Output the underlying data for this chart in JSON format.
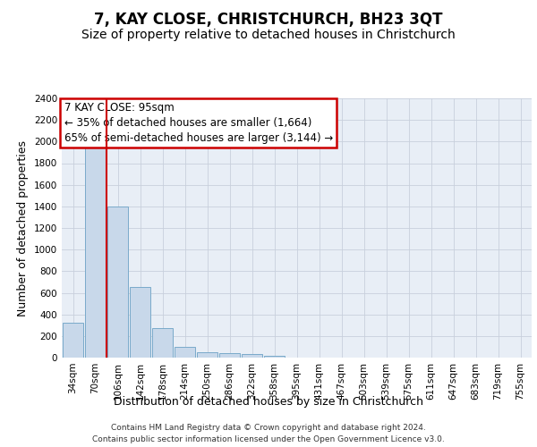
{
  "title": "7, KAY CLOSE, CHRISTCHURCH, BH23 3QT",
  "subtitle": "Size of property relative to detached houses in Christchurch",
  "xlabel": "Distribution of detached houses by size in Christchurch",
  "ylabel": "Number of detached properties",
  "footnote1": "Contains HM Land Registry data © Crown copyright and database right 2024.",
  "footnote2": "Contains public sector information licensed under the Open Government Licence v3.0.",
  "bar_labels": [
    "34sqm",
    "70sqm",
    "106sqm",
    "142sqm",
    "178sqm",
    "214sqm",
    "250sqm",
    "286sqm",
    "322sqm",
    "358sqm",
    "395sqm",
    "431sqm",
    "467sqm",
    "503sqm",
    "539sqm",
    "575sqm",
    "611sqm",
    "647sqm",
    "683sqm",
    "719sqm",
    "755sqm"
  ],
  "bar_values": [
    325,
    1960,
    1400,
    650,
    275,
    100,
    50,
    40,
    35,
    20,
    0,
    0,
    0,
    0,
    0,
    0,
    0,
    0,
    0,
    0,
    0
  ],
  "bar_color": "#c8d8ea",
  "bar_edgecolor": "#7aaaca",
  "property_line_x": 1.5,
  "property_sqm": 95,
  "annotation_text_line1": "7 KAY CLOSE: 95sqm",
  "annotation_text_line2": "← 35% of detached houses are smaller (1,664)",
  "annotation_text_line3": "65% of semi-detached houses are larger (3,144) →",
  "annotation_box_color": "#ffffff",
  "annotation_box_edgecolor": "#cc0000",
  "ylim": [
    0,
    2400
  ],
  "yticks": [
    0,
    200,
    400,
    600,
    800,
    1000,
    1200,
    1400,
    1600,
    1800,
    2000,
    2200,
    2400
  ],
  "grid_color": "#c8d0dc",
  "background_color": "#e8eef6",
  "fig_background": "#ffffff",
  "title_fontsize": 12,
  "subtitle_fontsize": 10,
  "axis_label_fontsize": 9,
  "tick_fontsize": 7.5,
  "annotation_fontsize": 8.5,
  "footnote_fontsize": 6.5
}
